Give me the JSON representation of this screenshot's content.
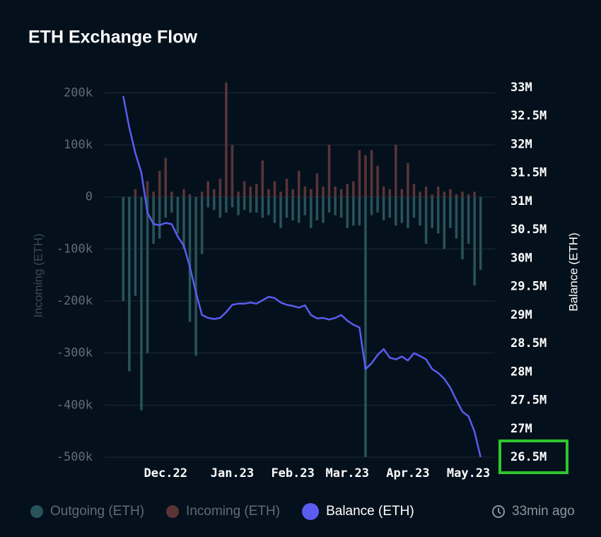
{
  "chart_data": {
    "type": "bar",
    "title": "ETH Exchange Flow",
    "y_label": "Incoming (ETH)",
    "y2_label": "Balance (ETH)",
    "annotation": "33min ago",
    "categories": [
      null,
      null,
      null,
      null,
      null,
      null,
      null,
      "Dec.22",
      null,
      null,
      null,
      null,
      null,
      null,
      null,
      null,
      null,
      null,
      "Jan.23",
      null,
      null,
      null,
      null,
      null,
      null,
      null,
      null,
      null,
      "Feb.23",
      null,
      null,
      null,
      null,
      null,
      null,
      null,
      null,
      "Mar.23",
      null,
      null,
      null,
      null,
      null,
      null,
      null,
      null,
      null,
      "Apr.23",
      null,
      null,
      null,
      null,
      null,
      null,
      null,
      null,
      null,
      "May.23",
      null,
      null
    ],
    "series": [
      {
        "name": "Outgoing (ETH)",
        "color": "#28535a",
        "values": [
          -200000,
          -335000,
          -190000,
          -410000,
          -300000,
          -90000,
          -80000,
          -40000,
          -30000,
          -70000,
          -100000,
          -240000,
          -305000,
          -110000,
          -20000,
          -25000,
          -40000,
          -30000,
          -20000,
          -35000,
          -25000,
          -30000,
          -30000,
          -40000,
          -35000,
          -50000,
          -60000,
          -40000,
          -45000,
          -50000,
          -35000,
          -60000,
          -45000,
          -50000,
          -30000,
          -35000,
          -40000,
          -60000,
          -55000,
          -55000,
          -500000,
          -35000,
          -30000,
          -45000,
          -40000,
          -55000,
          -50000,
          -60000,
          -40000,
          -55000,
          -90000,
          -60000,
          -70000,
          -100000,
          -60000,
          -80000,
          -120000,
          -90000,
          -170000,
          -140000
        ]
      },
      {
        "name": "Incoming (ETH)",
        "color": "#5c3438",
        "values": [
          0,
          0,
          15000,
          0,
          30000,
          10000,
          50000,
          75000,
          10000,
          0,
          15000,
          5000,
          0,
          10000,
          30000,
          15000,
          35000,
          220000,
          100000,
          10000,
          30000,
          20000,
          25000,
          70000,
          15000,
          30000,
          10000,
          35000,
          15000,
          50000,
          20000,
          15000,
          45000,
          20000,
          100000,
          20000,
          15000,
          25000,
          30000,
          90000,
          80000,
          90000,
          60000,
          20000,
          15000,
          100000,
          15000,
          65000,
          25000,
          10000,
          20000,
          5000,
          20000,
          10000,
          15000,
          5000,
          10000,
          5000,
          10000,
          0
        ]
      },
      {
        "name": "Balance (ETH)",
        "type": "line",
        "axis": "y2",
        "color": "#5a5cf0",
        "values": [
          32850000,
          32300000,
          31850000,
          31500000,
          30800000,
          30600000,
          30580000,
          30620000,
          30600000,
          30380000,
          30220000,
          29850000,
          29400000,
          29000000,
          28950000,
          28930000,
          28950000,
          29050000,
          29180000,
          29200000,
          29200000,
          29220000,
          29200000,
          29260000,
          29320000,
          29300000,
          29220000,
          29180000,
          29160000,
          29130000,
          29170000,
          29000000,
          28940000,
          28950000,
          28920000,
          28950000,
          29000000,
          28900000,
          28830000,
          28780000,
          28050000,
          28150000,
          28300000,
          28400000,
          28250000,
          28220000,
          28270000,
          28200000,
          28330000,
          28280000,
          28220000,
          28050000,
          27980000,
          27880000,
          27720000,
          27500000,
          27300000,
          27220000,
          26950000,
          26500000
        ]
      }
    ],
    "ylim": [
      -500000,
      210000
    ],
    "yticks": [
      {
        "value": 200000,
        "label": "200k"
      },
      {
        "value": 100000,
        "label": "100k"
      },
      0,
      {
        "value": -100000,
        "label": "-100k"
      },
      {
        "value": -200000,
        "label": "-200k"
      },
      {
        "value": -300000,
        "label": "-300k"
      },
      {
        "value": -400000,
        "label": "-400k"
      },
      {
        "value": -500000,
        "label": "-500k"
      }
    ],
    "y2lim": [
      26500000,
      33000000
    ],
    "y2ticks": [
      {
        "value": 33000000,
        "label": "33M"
      },
      {
        "value": 32500000,
        "label": "32.5M"
      },
      {
        "value": 32000000,
        "label": "32M"
      },
      {
        "value": 31500000,
        "label": "31.5M"
      },
      {
        "value": 31000000,
        "label": "31M"
      },
      {
        "value": 30500000,
        "label": "30.5M"
      },
      {
        "value": 30000000,
        "label": "30M"
      },
      {
        "value": 29500000,
        "label": "29.5M"
      },
      {
        "value": 29000000,
        "label": "29M"
      },
      {
        "value": 28500000,
        "label": "28.5M"
      },
      {
        "value": 28000000,
        "label": "28M"
      },
      {
        "value": 27500000,
        "label": "27.5M"
      },
      {
        "value": 27000000,
        "label": "27M"
      },
      {
        "value": 26500000,
        "label": "26.5M"
      }
    ],
    "grid": true
  }
}
